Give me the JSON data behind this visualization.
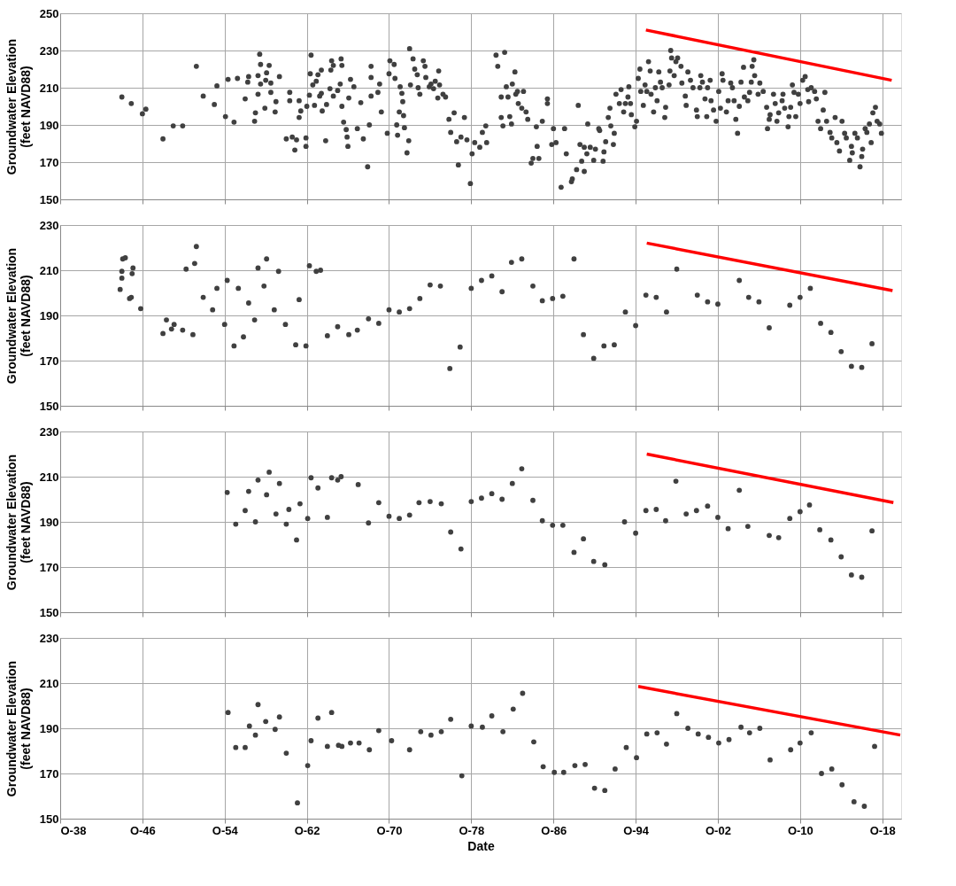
{
  "chart_data": [
    {
      "type": "scatter",
      "ylabel": "Groundwater Elevation\n(feet NAVD88)",
      "xlim": [
        "1938-10",
        "2020-08"
      ],
      "ylim": [
        150,
        250
      ],
      "yticks": [
        150,
        170,
        190,
        210,
        230,
        250
      ],
      "xticks": [
        "1938-10",
        "1946-10",
        "1954-10",
        "1962-10",
        "1970-10",
        "1978-10",
        "1986-10",
        "1994-10",
        "2002-10",
        "2010-10",
        "2018-10"
      ],
      "tick_labels": "y",
      "grid": true,
      "marker": "circle",
      "series": [
        {
          "color": "#404040",
          "x": [
            "1944-10",
            "1945-09",
            "1946-10",
            "1947-02",
            "1948-10",
            "1949-10",
            "1950-09",
            "1952-01",
            "1952-09",
            "1953-10",
            "1954-01",
            "1954-11",
            "1955-02",
            "1955-09",
            "1956-01",
            "1956-10",
            "1957-01",
            "1957-02",
            "1957-09",
            "1957-10",
            "1958-01",
            "1958-01",
            "1958-03",
            "1958-04",
            "1958-04",
            "1958-09",
            "1958-10",
            "1958-11",
            "1959-02",
            "1959-04",
            "1959-04",
            "1959-09",
            "1959-10",
            "1960-02",
            "1960-10",
            "1961-02",
            "1961-02",
            "1961-05",
            "1961-08",
            "1961-10",
            "1962-01",
            "1962-01",
            "1962-03",
            "1962-09",
            "1962-09",
            "1962-10",
            "1963-01",
            "1963-02",
            "1963-03",
            "1963-05",
            "1963-07",
            "1963-09",
            "1963-11",
            "1964-01",
            "1964-03",
            "1964-03",
            "1964-04",
            "1964-08",
            "1964-09",
            "1965-01",
            "1965-02",
            "1965-03",
            "1965-05",
            "1965-05",
            "1965-10",
            "1966-01",
            "1966-02",
            "1966-03",
            "1966-03",
            "1966-05",
            "1966-08",
            "1966-09",
            "1966-10",
            "1966-11",
            "1967-01",
            "1967-05",
            "1967-09",
            "1968-01",
            "1968-04",
            "1968-09",
            "1968-11",
            "1969-01",
            "1969-01",
            "1969-01",
            "1969-09",
            "1969-11",
            "1970-01",
            "1970-08",
            "1970-10",
            "1970-11",
            "1971-04",
            "1971-05",
            "1971-07",
            "1971-08",
            "1971-10",
            "1971-11",
            "1972-01",
            "1972-02",
            "1972-03",
            "1972-04",
            "1972-07",
            "1972-09",
            "1972-10",
            "1972-11",
            "1973-02",
            "1973-04",
            "1973-07",
            "1973-08",
            "1973-10",
            "1974-02",
            "1974-04",
            "1974-05",
            "1974-09",
            "1974-11",
            "1975-02",
            "1975-04",
            "1975-07",
            "1975-08",
            "1975-09",
            "1976-01",
            "1976-04",
            "1976-08",
            "1977-02",
            "1976-10",
            "1977-05",
            "1977-07",
            "1977-10",
            "1978-02",
            "1978-05",
            "1978-09",
            "1978-11",
            "1979-02",
            "1979-08",
            "1979-11",
            "1980-03",
            "1980-04",
            "1981-03",
            "1981-05",
            "1981-09",
            "1981-09",
            "1981-11",
            "1982-01",
            "1982-03",
            "1982-05",
            "1982-07",
            "1982-09",
            "1982-10",
            "1983-01",
            "1983-02",
            "1983-04",
            "1983-05",
            "1983-09",
            "1983-11",
            "1984-02",
            "1984-04",
            "1984-08",
            "1984-10",
            "1985-02",
            "1985-03",
            "1985-05",
            "1985-09",
            "1986-03",
            "1986-03",
            "1986-08",
            "1986-10",
            "1987-01",
            "1987-07",
            "1987-11",
            "1988-01",
            "1988-07",
            "1988-08",
            "1989-01",
            "1989-03",
            "1989-05",
            "1989-07",
            "1989-10",
            "1989-10",
            "1990-01",
            "1990-02",
            "1990-05",
            "1990-09",
            "1990-11",
            "1991-03",
            "1991-04",
            "1991-08",
            "1991-09",
            "1991-11",
            "1992-02",
            "1992-04",
            "1992-05",
            "1992-08",
            "1992-09",
            "1992-11",
            "1993-03",
            "1993-05",
            "1993-08",
            "1993-10",
            "1994-01",
            "1994-02",
            "1994-04",
            "1994-05",
            "1994-09",
            "1994-11",
            "1995-01",
            "1995-03",
            "1995-04",
            "1995-07",
            "1995-09",
            "1995-11",
            "1996-01",
            "1996-03",
            "1996-04",
            "1996-07",
            "1996-09",
            "1996-11",
            "1997-01",
            "1997-03",
            "1997-05",
            "1997-08",
            "1997-09",
            "1998-01",
            "1998-02",
            "1998-03",
            "1998-04",
            "1998-07",
            "1998-09",
            "1998-11",
            "1999-03",
            "1999-04",
            "1999-08",
            "1999-09",
            "1999-11",
            "2000-02",
            "2000-05",
            "2000-09",
            "2000-10",
            "2001-01",
            "2001-02",
            "2001-04",
            "2001-07",
            "2001-09",
            "2001-10",
            "2002-01",
            "2002-02",
            "2002-05",
            "2002-08",
            "2002-11",
            "2003-01",
            "2003-03",
            "2003-04",
            "2003-08",
            "2003-10",
            "2004-01",
            "2004-03",
            "2004-05",
            "2004-07",
            "2004-09",
            "2004-11",
            "2005-01",
            "2005-04",
            "2005-05",
            "2005-09",
            "2005-11",
            "2006-01",
            "2006-02",
            "2006-04",
            "2006-05",
            "2006-09",
            "2006-11",
            "2007-03",
            "2007-07",
            "2007-08",
            "2007-10",
            "2007-11",
            "2008-03",
            "2008-05",
            "2008-07",
            "2008-09",
            "2009-01",
            "2009-02",
            "2009-04",
            "2009-08",
            "2009-09",
            "2009-11",
            "2010-01",
            "2010-03",
            "2010-05",
            "2010-08",
            "2010-10",
            "2011-01",
            "2011-04",
            "2011-07",
            "2011-08",
            "2011-11",
            "2012-03",
            "2012-05",
            "2012-07",
            "2012-10",
            "2013-01",
            "2013-03",
            "2013-05",
            "2013-09",
            "2013-11",
            "2014-03",
            "2014-05",
            "2014-08",
            "2014-11",
            "2015-02",
            "2015-04",
            "2015-08",
            "2015-10",
            "2015-11",
            "2016-02",
            "2016-05",
            "2016-08",
            "2016-10",
            "2016-11",
            "2017-02",
            "2017-04",
            "2017-07",
            "2017-09",
            "2017-11",
            "2018-02",
            "2018-04",
            "2018-07",
            "2018-09"
          ],
          "values": [
            205,
            201.5,
            196,
            198.5,
            182.5,
            189.5,
            189.5,
            221.5,
            205.5,
            201,
            211,
            194.5,
            214.5,
            191.5,
            215,
            204,
            213,
            216,
            192,
            196.5,
            206.5,
            216.5,
            228,
            212,
            222.5,
            199,
            214,
            218,
            222,
            212.5,
            207.5,
            197,
            202.5,
            216,
            182.5,
            207.5,
            203,
            183.5,
            176.5,
            182,
            203,
            194,
            197.5,
            178.5,
            183,
            200,
            206,
            217.5,
            227.5,
            211.5,
            200.5,
            213.5,
            217,
            205.5,
            207,
            219.5,
            197.5,
            181.5,
            201,
            209.5,
            219.5,
            224.5,
            222,
            205.5,
            208.5,
            212,
            225.5,
            200,
            222,
            191.5,
            187.5,
            183.5,
            178.5,
            204.5,
            214.5,
            210.5,
            188,
            202,
            182.5,
            167.5,
            190,
            221.5,
            205.5,
            215.5,
            207.5,
            212,
            197,
            185.5,
            217.5,
            224.5,
            222.5,
            215,
            190,
            184.5,
            197,
            210.5,
            207,
            202.5,
            195,
            188.5,
            175,
            181.5,
            231,
            211.5,
            225.5,
            220,
            217,
            210,
            206.5,
            224.5,
            221.5,
            215.5,
            210.5,
            212,
            209.5,
            213.5,
            204.5,
            219,
            211.5,
            206.5,
            205,
            193,
            196.5,
            186,
            181,
            168.5,
            183.5,
            194,
            182,
            158.5,
            174.5,
            180.5,
            178,
            186,
            189.5,
            180.5,
            227.5,
            221.5,
            194,
            205,
            189.5,
            229,
            210.5,
            205,
            194.5,
            190.5,
            212,
            218.5,
            206.5,
            208,
            201.5,
            199,
            208,
            197,
            193,
            169.5,
            172,
            189,
            178.5,
            172,
            192,
            204,
            201.5,
            179.5,
            188,
            180.5,
            156.5,
            188,
            174.5,
            159.5,
            161,
            166,
            200.5,
            179.5,
            170.5,
            165,
            178,
            174.5,
            190.5,
            178,
            171,
            177,
            188,
            187,
            170.5,
            175.5,
            181,
            194,
            199,
            189.5,
            179.5,
            185.5,
            206.5,
            201.5,
            209,
            197,
            201.5,
            205,
            210.5,
            201.5,
            195.5,
            189,
            192,
            215,
            220,
            208,
            200.5,
            211.5,
            208,
            224,
            219,
            206.5,
            197,
            210,
            203,
            218.5,
            213,
            210,
            194,
            199.5,
            211.5,
            219,
            230,
            226,
            216.5,
            224,
            226,
            221.5,
            212.5,
            205.5,
            200.5,
            218.5,
            214,
            210,
            198,
            194.5,
            210,
            216.5,
            213,
            204,
            194.5,
            210,
            214,
            203,
            198,
            192,
            208,
            199,
            217.5,
            214,
            197,
            203,
            212.5,
            210,
            203,
            193,
            185.5,
            200,
            213,
            221,
            205,
            203,
            207.5,
            213,
            221.5,
            225,
            216.5,
            206.5,
            212.5,
            208,
            199.5,
            188,
            193,
            195.5,
            206.5,
            201.5,
            192,
            196.5,
            203,
            206.5,
            199,
            189,
            194.5,
            199.5,
            211.5,
            207.5,
            194.5,
            206.5,
            201.5,
            214,
            216,
            209,
            202.5,
            210,
            208,
            204,
            192,
            188,
            198,
            207.5,
            192,
            186,
            183,
            194,
            180.5,
            176,
            192,
            185.5,
            183,
            171,
            178.5,
            175,
            185.5,
            183,
            167.5,
            173,
            177,
            188,
            186,
            190.5,
            180.5,
            196.5,
            199.5,
            192,
            190.5,
            185.5
          ]
        },
        {
          "type": "line",
          "color": "#ff0000",
          "line_style": "solid",
          "marker": "none",
          "x": [
            "1995-10",
            "2019-09"
          ],
          "values": [
            241,
            214
          ]
        }
      ]
    },
    {
      "type": "scatter",
      "ylabel": "Groundwater Elevation\n(feet NAVD88)",
      "xlim": [
        "1938-10",
        "2020-08"
      ],
      "ylim": [
        150,
        230
      ],
      "yticks": [
        150,
        170,
        190,
        210,
        230
      ],
      "xticks": [
        "1938-10",
        "1946-10",
        "1954-10",
        "1962-10",
        "1970-10",
        "1978-10",
        "1986-10",
        "1994-10",
        "2002-10",
        "2010-10",
        "2018-10"
      ],
      "tick_labels": "y",
      "grid": true,
      "marker": "circle",
      "series": [
        {
          "color": "#404040",
          "x": [
            "1944-08",
            "1944-10",
            "1944-10",
            "1944-11",
            "1945-02",
            "1945-07",
            "1945-09",
            "1945-10",
            "1945-11",
            "1946-08",
            "1948-10",
            "1949-02",
            "1949-08",
            "1949-11",
            "1950-09",
            "1951-01",
            "1951-09",
            "1951-11",
            "1952-01",
            "1952-09",
            "1953-08",
            "1954-01",
            "1954-10",
            "1955-01",
            "1955-09",
            "1956-02",
            "1956-08",
            "1957-02",
            "1957-09",
            "1958-01",
            "1958-08",
            "1958-11",
            "1959-08",
            "1960-01",
            "1960-09",
            "1961-09",
            "1962-01",
            "1962-09",
            "1963-01",
            "1963-09",
            "1964-02",
            "1964-10",
            "1965-10",
            "1966-11",
            "1967-09",
            "1968-10",
            "1969-10",
            "1970-10",
            "1971-10",
            "1972-10",
            "1973-10",
            "1974-10",
            "1975-10",
            "1976-09",
            "1977-09",
            "1978-10",
            "1979-10",
            "1980-10",
            "1981-10",
            "1982-09",
            "1983-09",
            "1984-10",
            "1985-09",
            "1986-09",
            "1987-09",
            "1988-10",
            "1989-09",
            "1990-09",
            "1991-09",
            "1992-09",
            "1993-10",
            "1994-10",
            "1995-10",
            "1996-10",
            "1997-10",
            "1998-10",
            "2000-10",
            "2001-10",
            "2002-10",
            "2004-11",
            "2005-10",
            "2006-10",
            "2007-10",
            "2009-10",
            "2010-10",
            "2011-10",
            "2012-10",
            "2013-10",
            "2014-10",
            "2015-10",
            "2016-10",
            "2017-10"
          ],
          "values": [
            201.5,
            206.5,
            209.5,
            215,
            215.5,
            197.5,
            198,
            208.5,
            211,
            193,
            182,
            188,
            184,
            186,
            183.5,
            210.5,
            181.5,
            213,
            220.5,
            198,
            192.5,
            202,
            186,
            205.5,
            176.5,
            202,
            180.5,
            195.5,
            188,
            211,
            203,
            215,
            192.5,
            209.5,
            186,
            177,
            197,
            176.5,
            212,
            209.5,
            210,
            181,
            185,
            181.5,
            183.5,
            188.5,
            186.5,
            192.5,
            191.5,
            193,
            197.5,
            203.5,
            203,
            166.5,
            176,
            202,
            205.5,
            207.5,
            200.5,
            213.5,
            215,
            203,
            196.5,
            197.5,
            198.5,
            215,
            181.5,
            171,
            176.5,
            177,
            191.5,
            185.5,
            199,
            198,
            191.5,
            210.5,
            199,
            196,
            195,
            205.5,
            198,
            196,
            184.5,
            194.5,
            198,
            202,
            186.5,
            182.5,
            174,
            167.5,
            167,
            177.5
          ]
        },
        {
          "type": "line",
          "color": "#ff0000",
          "line_style": "solid",
          "marker": "none",
          "x": [
            "1995-11",
            "2019-10"
          ],
          "values": [
            222,
            201
          ]
        }
      ]
    },
    {
      "type": "scatter",
      "ylabel": "Groundwater Elevation\n(feet NAVD88)",
      "xlim": [
        "1938-10",
        "2020-08"
      ],
      "ylim": [
        150,
        230
      ],
      "yticks": [
        150,
        170,
        190,
        210,
        230
      ],
      "xticks": [
        "1938-10",
        "1946-10",
        "1954-10",
        "1962-10",
        "1970-10",
        "1978-10",
        "1986-10",
        "1994-10",
        "2002-10",
        "2010-10",
        "2018-10"
      ],
      "tick_labels": "y",
      "grid": true,
      "marker": "circle",
      "series": [
        {
          "color": "#404040",
          "x": [
            "1955-01",
            "1955-11",
            "1956-10",
            "1957-02",
            "1957-10",
            "1958-01",
            "1958-11",
            "1959-02",
            "1959-10",
            "1960-02",
            "1960-10",
            "1961-01",
            "1961-10",
            "1962-02",
            "1962-11",
            "1963-03",
            "1963-11",
            "1964-10",
            "1965-03",
            "1965-10",
            "1966-02",
            "1967-10",
            "1968-10",
            "1969-10",
            "1970-10",
            "1971-10",
            "1972-10",
            "1973-09",
            "1974-10",
            "1975-11",
            "1976-10",
            "1977-10",
            "1978-10",
            "1979-10",
            "1980-10",
            "1981-10",
            "1982-10",
            "1983-09",
            "1984-10",
            "1985-09",
            "1986-09",
            "1987-09",
            "1988-10",
            "1989-09",
            "1990-09",
            "1991-10",
            "1993-09",
            "1994-10",
            "1995-10",
            "1996-10",
            "1997-09",
            "1998-09",
            "1999-09",
            "2000-09",
            "2001-10",
            "2002-10",
            "2003-10",
            "2004-11",
            "2005-09",
            "2007-10",
            "2008-09",
            "2009-10",
            "2010-10",
            "2011-09",
            "2012-09",
            "2013-10",
            "2014-10",
            "2015-10",
            "2016-10",
            "2017-10"
          ],
          "values": [
            203,
            189,
            195,
            203.5,
            190,
            208.5,
            202,
            212,
            193.5,
            207,
            189,
            195.5,
            182,
            198,
            191.5,
            209.5,
            205,
            192,
            209.5,
            208.5,
            210,
            206.5,
            189.5,
            198.5,
            192.5,
            191.5,
            193,
            198.5,
            199,
            198,
            185.5,
            178,
            199,
            200.5,
            202.5,
            200,
            207,
            213.5,
            199.5,
            190.5,
            188.5,
            188.5,
            176.5,
            182.5,
            172.5,
            171,
            190,
            185,
            195,
            195.5,
            190.5,
            208,
            193.5,
            195,
            197,
            192,
            187,
            204,
            188,
            184,
            183,
            191.5,
            194.5,
            197.5,
            186.5,
            182,
            174.5,
            166.5,
            165.5,
            186
          ]
        },
        {
          "type": "line",
          "color": "#ff0000",
          "line_style": "solid",
          "marker": "none",
          "x": [
            "1995-11",
            "2019-11"
          ],
          "values": [
            220,
            198.5
          ]
        }
      ]
    },
    {
      "type": "scatter",
      "xlabel": "Date",
      "ylabel": "Groundwater Elevation\n(feet NAVD88)",
      "xlim": [
        "1938-10",
        "2020-08"
      ],
      "ylim": [
        150,
        230
      ],
      "yticks": [
        150,
        170,
        190,
        210,
        230
      ],
      "xticks": [
        {
          "value": "1938-10",
          "label": "O-38"
        },
        {
          "value": "1946-10",
          "label": "O-46"
        },
        {
          "value": "1954-10",
          "label": "O-54"
        },
        {
          "value": "1962-10",
          "label": "O-62"
        },
        {
          "value": "1970-10",
          "label": "O-70"
        },
        {
          "value": "1978-10",
          "label": "O-78"
        },
        {
          "value": "1986-10",
          "label": "O-86"
        },
        {
          "value": "1994-10",
          "label": "O-94"
        },
        {
          "value": "2002-10",
          "label": "O-02"
        },
        {
          "value": "2010-10",
          "label": "O-10"
        },
        {
          "value": "2018-10",
          "label": "O-18"
        }
      ],
      "grid": true,
      "marker": "circle",
      "series": [
        {
          "color": "#404040",
          "x": [
            "1955-02",
            "1955-11",
            "1956-10",
            "1957-03",
            "1957-10",
            "1958-01",
            "1958-10",
            "1959-09",
            "1960-02",
            "1960-10",
            "1961-11",
            "1962-11",
            "1963-03",
            "1963-11",
            "1964-10",
            "1965-03",
            "1965-11",
            "1966-03",
            "1967-01",
            "1967-11",
            "1968-11",
            "1969-10",
            "1971-01",
            "1972-10",
            "1973-11",
            "1974-11",
            "1975-11",
            "1976-10",
            "1977-11",
            "1978-10",
            "1979-11",
            "1980-10",
            "1981-11",
            "1982-11",
            "1983-10",
            "1984-11",
            "1985-10",
            "1986-11",
            "1987-10",
            "1988-11",
            "1989-11",
            "1990-10",
            "1991-10",
            "1992-10",
            "1993-11",
            "1994-11",
            "1995-11",
            "1996-11",
            "1997-10",
            "1998-10",
            "1999-11",
            "2000-11",
            "2001-11",
            "2002-11",
            "2003-11",
            "2005-01",
            "2005-11",
            "2006-11",
            "2007-11",
            "2009-11",
            "2010-10",
            "2011-11",
            "2012-11",
            "2013-11",
            "2014-11",
            "2016-01",
            "2017-01",
            "2018-01"
          ],
          "values": [
            197,
            181.5,
            181.5,
            191,
            187,
            200.5,
            193,
            189.5,
            195,
            179,
            157,
            173.5,
            184.5,
            194.5,
            182,
            197,
            182.5,
            182,
            183.5,
            183.5,
            180.5,
            189,
            184.5,
            180.5,
            188.5,
            187,
            188.5,
            194,
            169,
            191,
            190.5,
            195.5,
            188.5,
            198.5,
            205.5,
            184,
            173,
            170.5,
            170.5,
            173.5,
            174,
            163.5,
            162.5,
            172,
            181.5,
            177,
            187.5,
            188,
            183,
            196.5,
            190,
            187.5,
            186,
            183.5,
            185,
            190.5,
            188,
            190,
            176,
            180.5,
            183.5,
            188,
            170,
            172,
            165,
            157.5,
            155.5,
            182
          ]
        },
        {
          "type": "line",
          "color": "#ff0000",
          "line_style": "solid",
          "marker": "none",
          "x": [
            "1995-01",
            "2020-07"
          ],
          "values": [
            208.5,
            187
          ]
        }
      ]
    }
  ]
}
